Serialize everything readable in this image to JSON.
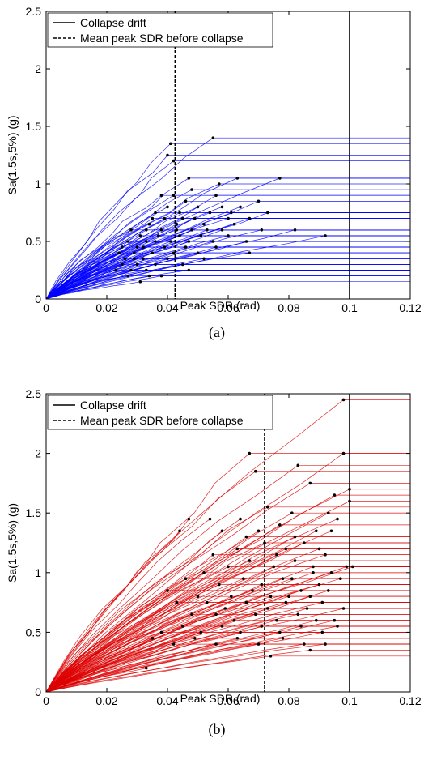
{
  "chart_data": [
    {
      "type": "line",
      "caption": "(a)",
      "xlabel": "Peak SDR (rad)",
      "ylabel": "Sa(1.5s,5%) (g)",
      "xlim": [
        0,
        0.12
      ],
      "ylim": [
        0,
        2.5
      ],
      "xticks": [
        "0",
        "0.02",
        "0.04",
        "0.06",
        "0.08",
        "0.1",
        "0.12"
      ],
      "yticks": [
        "0",
        "0.5",
        "1",
        "1.5",
        "2",
        "2.5"
      ],
      "grid": false,
      "legend_position": "top-left",
      "legend": [
        {
          "label": "Collapse drift",
          "style": "solid"
        },
        {
          "label": "Mean peak SDR before collapse",
          "style": "dashed"
        }
      ],
      "series_color": "#0000ff",
      "collapse_drift": 0.1,
      "mean_peak_sdr_before_collapse": 0.0425,
      "ida_curves": [
        [
          0.04,
          1.25
        ],
        [
          0.055,
          1.4
        ],
        [
          0.041,
          1.35
        ],
        [
          0.042,
          1.2
        ],
        [
          0.047,
          1.05
        ],
        [
          0.063,
          1.05
        ],
        [
          0.077,
          1.05
        ],
        [
          0.057,
          1.0
        ],
        [
          0.07,
          0.85
        ],
        [
          0.048,
          0.95
        ],
        [
          0.038,
          0.9
        ],
        [
          0.064,
          0.8
        ],
        [
          0.073,
          0.75
        ],
        [
          0.056,
          0.9
        ],
        [
          0.05,
          0.8
        ],
        [
          0.067,
          0.7
        ],
        [
          0.06,
          0.7
        ],
        [
          0.054,
          0.75
        ],
        [
          0.045,
          0.7
        ],
        [
          0.04,
          0.8
        ],
        [
          0.036,
          0.75
        ],
        [
          0.082,
          0.6
        ],
        [
          0.092,
          0.55
        ],
        [
          0.071,
          0.6
        ],
        [
          0.062,
          0.65
        ],
        [
          0.058,
          0.6
        ],
        [
          0.052,
          0.65
        ],
        [
          0.048,
          0.6
        ],
        [
          0.043,
          0.65
        ],
        [
          0.038,
          0.6
        ],
        [
          0.034,
          0.65
        ],
        [
          0.031,
          0.55
        ],
        [
          0.028,
          0.6
        ],
        [
          0.066,
          0.5
        ],
        [
          0.06,
          0.55
        ],
        [
          0.055,
          0.5
        ],
        [
          0.051,
          0.55
        ],
        [
          0.047,
          0.5
        ],
        [
          0.044,
          0.55
        ],
        [
          0.041,
          0.5
        ],
        [
          0.037,
          0.55
        ],
        [
          0.033,
          0.5
        ],
        [
          0.03,
          0.45
        ],
        [
          0.027,
          0.5
        ],
        [
          0.025,
          0.45
        ],
        [
          0.067,
          0.4
        ],
        [
          0.056,
          0.45
        ],
        [
          0.05,
          0.4
        ],
        [
          0.046,
          0.45
        ],
        [
          0.042,
          0.4
        ],
        [
          0.039,
          0.45
        ],
        [
          0.035,
          0.4
        ],
        [
          0.032,
          0.35
        ],
        [
          0.029,
          0.4
        ],
        [
          0.026,
          0.35
        ],
        [
          0.024,
          0.4
        ],
        [
          0.052,
          0.35
        ],
        [
          0.045,
          0.3
        ],
        [
          0.04,
          0.35
        ],
        [
          0.036,
          0.3
        ],
        [
          0.033,
          0.25
        ],
        [
          0.03,
          0.3
        ],
        [
          0.028,
          0.25
        ],
        [
          0.025,
          0.3
        ],
        [
          0.023,
          0.25
        ],
        [
          0.047,
          0.25
        ],
        [
          0.038,
          0.2
        ],
        [
          0.034,
          0.2
        ],
        [
          0.031,
          0.15
        ],
        [
          0.027,
          0.2
        ],
        [
          0.053,
          0.6
        ],
        [
          0.049,
          0.7
        ],
        [
          0.044,
          0.75
        ],
        [
          0.039,
          0.7
        ],
        [
          0.035,
          0.7
        ],
        [
          0.033,
          0.6
        ],
        [
          0.046,
          0.85
        ],
        [
          0.042,
          0.9
        ],
        [
          0.058,
          0.8
        ],
        [
          0.061,
          0.75
        ],
        [
          0.036,
          0.5
        ],
        [
          0.032,
          0.45
        ],
        [
          0.029,
          0.35
        ],
        [
          0.043,
          0.6
        ]
      ]
    },
    {
      "type": "line",
      "caption": "(b)",
      "xlabel": "Peak SDR (rad)",
      "ylabel": "Sa(1.5s,5%) (g)",
      "xlim": [
        0,
        0.12
      ],
      "ylim": [
        0,
        2.5
      ],
      "xticks": [
        "0",
        "0.02",
        "0.04",
        "0.06",
        "0.08",
        "0.1",
        "0.12"
      ],
      "yticks": [
        "0",
        "0.5",
        "1",
        "1.5",
        "2",
        "2.5"
      ],
      "grid": false,
      "legend_position": "top-left",
      "legend": [
        {
          "label": "Collapse drift",
          "style": "solid"
        },
        {
          "label": "Mean peak SDR before collapse",
          "style": "dashed"
        }
      ],
      "series_color": "#dd0000",
      "collapse_drift": 0.1,
      "mean_peak_sdr_before_collapse": 0.072,
      "ida_curves": [
        [
          0.098,
          2.45
        ],
        [
          0.098,
          2.0
        ],
        [
          0.067,
          2.0
        ],
        [
          0.069,
          1.85
        ],
        [
          0.083,
          1.9
        ],
        [
          0.087,
          1.75
        ],
        [
          0.1,
          1.7
        ],
        [
          0.1,
          1.6
        ],
        [
          0.095,
          1.65
        ],
        [
          0.047,
          1.45
        ],
        [
          0.054,
          1.45
        ],
        [
          0.064,
          1.45
        ],
        [
          0.073,
          1.55
        ],
        [
          0.081,
          1.5
        ],
        [
          0.093,
          1.5
        ],
        [
          0.044,
          1.35
        ],
        [
          0.058,
          1.35
        ],
        [
          0.07,
          1.35
        ],
        [
          0.077,
          1.4
        ],
        [
          0.089,
          1.35
        ],
        [
          0.096,
          1.45
        ],
        [
          0.055,
          1.15
        ],
        [
          0.063,
          1.2
        ],
        [
          0.072,
          1.25
        ],
        [
          0.079,
          1.2
        ],
        [
          0.085,
          1.25
        ],
        [
          0.092,
          1.15
        ],
        [
          0.099,
          1.05
        ],
        [
          0.101,
          1.05
        ],
        [
          0.06,
          1.05
        ],
        [
          0.067,
          1.1
        ],
        [
          0.075,
          1.05
        ],
        [
          0.082,
          1.1
        ],
        [
          0.088,
          1.0
        ],
        [
          0.094,
          1.0
        ],
        [
          0.052,
          1.0
        ],
        [
          0.046,
          0.95
        ],
        [
          0.057,
          0.9
        ],
        [
          0.065,
          0.95
        ],
        [
          0.071,
          0.9
        ],
        [
          0.078,
          0.95
        ],
        [
          0.084,
          0.85
        ],
        [
          0.09,
          0.9
        ],
        [
          0.097,
          0.95
        ],
        [
          0.04,
          0.85
        ],
        [
          0.05,
          0.8
        ],
        [
          0.061,
          0.8
        ],
        [
          0.068,
          0.85
        ],
        [
          0.074,
          0.8
        ],
        [
          0.08,
          0.8
        ],
        [
          0.087,
          0.8
        ],
        [
          0.093,
          0.85
        ],
        [
          0.043,
          0.75
        ],
        [
          0.053,
          0.75
        ],
        [
          0.059,
          0.7
        ],
        [
          0.066,
          0.75
        ],
        [
          0.073,
          0.7
        ],
        [
          0.079,
          0.75
        ],
        [
          0.086,
          0.7
        ],
        [
          0.091,
          0.75
        ],
        [
          0.098,
          0.7
        ],
        [
          0.048,
          0.65
        ],
        [
          0.056,
          0.65
        ],
        [
          0.062,
          0.6
        ],
        [
          0.069,
          0.65
        ],
        [
          0.076,
          0.6
        ],
        [
          0.083,
          0.65
        ],
        [
          0.089,
          0.6
        ],
        [
          0.095,
          0.6
        ],
        [
          0.038,
          0.5
        ],
        [
          0.045,
          0.55
        ],
        [
          0.051,
          0.5
        ],
        [
          0.058,
          0.55
        ],
        [
          0.064,
          0.5
        ],
        [
          0.071,
          0.55
        ],
        [
          0.077,
          0.5
        ],
        [
          0.084,
          0.55
        ],
        [
          0.091,
          0.5
        ],
        [
          0.096,
          0.55
        ],
        [
          0.035,
          0.45
        ],
        [
          0.042,
          0.4
        ],
        [
          0.049,
          0.45
        ],
        [
          0.056,
          0.4
        ],
        [
          0.063,
          0.45
        ],
        [
          0.07,
          0.4
        ],
        [
          0.078,
          0.45
        ],
        [
          0.085,
          0.4
        ],
        [
          0.092,
          0.4
        ],
        [
          0.033,
          0.2
        ],
        [
          0.087,
          0.35
        ],
        [
          0.074,
          0.3
        ],
        [
          0.081,
          0.95
        ],
        [
          0.088,
          1.05
        ],
        [
          0.076,
          1.15
        ],
        [
          0.066,
          1.3
        ],
        [
          0.09,
          1.2
        ],
        [
          0.094,
          1.35
        ],
        [
          0.082,
          1.3
        ]
      ]
    }
  ]
}
